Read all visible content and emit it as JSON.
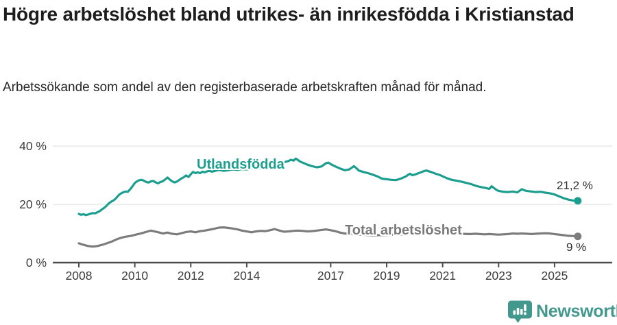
{
  "header": {
    "title": "Högre arbetslöshet bland utrikes- än inrikesfödda i Kristianstad",
    "subtitle": "Arbetssökande som andel av den registerbaserade arbetskraften månad för månad."
  },
  "footer": {
    "brand": "Newsworthy",
    "logo_icon": "speech-bubble-bar-chart-icon"
  },
  "colors": {
    "series_foreign": "#1b9e8e",
    "series_total": "#7c7c7c",
    "brand_teal": "#43988e",
    "grid": "#dcdcdc",
    "axis": "#4d4d4d",
    "title_text": "#1d1d1d"
  },
  "chart_data": {
    "type": "line",
    "title": "Högre arbetslöshet bland utrikes- än inrikesfödda i Kristianstad",
    "subtitle": "Arbetssökande som andel av den registerbaserade arbetskraften månad för månad.",
    "xlabel": "",
    "ylabel": "",
    "x_unit": "year (monthly data)",
    "xlim": [
      2007.1,
      2027.1
    ],
    "ylim": [
      0,
      42
    ],
    "grid": "horizontal",
    "legend_position": "inline-labels",
    "x_ticks": [
      2008,
      2010,
      2012,
      2014,
      2017,
      2019,
      2021,
      2023,
      2025
    ],
    "y_ticks": [
      {
        "value": 0,
        "label": "0 %"
      },
      {
        "value": 20,
        "label": "20 %"
      },
      {
        "value": 40,
        "label": "40 %"
      }
    ],
    "series": [
      {
        "name": "Utlandsfödda",
        "color": "#1b9e8e",
        "end_label": "21,2 %",
        "end_value": 21.2,
        "points": [
          [
            2008.0,
            16.7
          ],
          [
            2008.08,
            16.4
          ],
          [
            2008.17,
            16.6
          ],
          [
            2008.25,
            16.3
          ],
          [
            2008.33,
            16.5
          ],
          [
            2008.42,
            16.8
          ],
          [
            2008.5,
            17.0
          ],
          [
            2008.58,
            16.9
          ],
          [
            2008.67,
            17.3
          ],
          [
            2008.75,
            17.7
          ],
          [
            2008.83,
            18.3
          ],
          [
            2008.92,
            18.9
          ],
          [
            2009.0,
            19.6
          ],
          [
            2009.08,
            20.4
          ],
          [
            2009.17,
            21.0
          ],
          [
            2009.25,
            21.4
          ],
          [
            2009.33,
            22.1
          ],
          [
            2009.42,
            23.1
          ],
          [
            2009.5,
            23.7
          ],
          [
            2009.58,
            24.1
          ],
          [
            2009.67,
            24.4
          ],
          [
            2009.75,
            24.3
          ],
          [
            2009.83,
            25.1
          ],
          [
            2009.92,
            26.2
          ],
          [
            2010.0,
            27.3
          ],
          [
            2010.08,
            27.9
          ],
          [
            2010.17,
            28.3
          ],
          [
            2010.25,
            28.4
          ],
          [
            2010.33,
            28.1
          ],
          [
            2010.42,
            27.6
          ],
          [
            2010.5,
            27.5
          ],
          [
            2010.58,
            27.9
          ],
          [
            2010.67,
            28.0
          ],
          [
            2010.75,
            27.5
          ],
          [
            2010.83,
            27.2
          ],
          [
            2010.92,
            27.7
          ],
          [
            2011.0,
            27.9
          ],
          [
            2011.08,
            28.5
          ],
          [
            2011.17,
            29.2
          ],
          [
            2011.25,
            28.5
          ],
          [
            2011.33,
            27.9
          ],
          [
            2011.42,
            27.5
          ],
          [
            2011.5,
            27.8
          ],
          [
            2011.58,
            28.3
          ],
          [
            2011.67,
            28.9
          ],
          [
            2011.75,
            29.3
          ],
          [
            2011.83,
            29.9
          ],
          [
            2011.92,
            29.4
          ],
          [
            2012.0,
            30.3
          ],
          [
            2012.08,
            31.1
          ],
          [
            2012.17,
            30.7
          ],
          [
            2012.25,
            31.0
          ],
          [
            2012.33,
            30.7
          ],
          [
            2012.42,
            31.2
          ],
          [
            2012.5,
            31.0
          ],
          [
            2012.58,
            31.3
          ],
          [
            2012.67,
            31.5
          ],
          [
            2012.75,
            31.2
          ],
          [
            2012.83,
            31.4
          ],
          [
            2012.92,
            31.6
          ],
          [
            2013.0,
            31.8
          ],
          [
            2013.17,
            31.5
          ],
          [
            2013.33,
            31.7
          ],
          [
            2013.5,
            32.0
          ],
          [
            2013.67,
            31.8
          ],
          [
            2013.83,
            32.1
          ],
          [
            2014.0,
            32.0
          ],
          [
            2014.17,
            32.3
          ],
          [
            2014.33,
            32.1
          ],
          [
            2014.5,
            32.4
          ],
          [
            2014.67,
            32.6
          ],
          [
            2014.83,
            32.9
          ],
          [
            2015.0,
            33.2
          ],
          [
            2015.17,
            33.7
          ],
          [
            2015.33,
            34.4
          ],
          [
            2015.5,
            34.9
          ],
          [
            2015.58,
            35.3
          ],
          [
            2015.67,
            35.0
          ],
          [
            2015.75,
            35.7
          ],
          [
            2015.83,
            35.2
          ],
          [
            2015.92,
            34.6
          ],
          [
            2016.0,
            34.3
          ],
          [
            2016.17,
            33.6
          ],
          [
            2016.33,
            33.1
          ],
          [
            2016.5,
            32.7
          ],
          [
            2016.67,
            33.0
          ],
          [
            2016.83,
            34.1
          ],
          [
            2016.92,
            34.3
          ],
          [
            2017.0,
            33.8
          ],
          [
            2017.17,
            33.0
          ],
          [
            2017.33,
            32.3
          ],
          [
            2017.5,
            31.7
          ],
          [
            2017.67,
            32.0
          ],
          [
            2017.83,
            33.1
          ],
          [
            2017.92,
            32.4
          ],
          [
            2018.0,
            31.6
          ],
          [
            2018.17,
            31.1
          ],
          [
            2018.33,
            30.7
          ],
          [
            2018.5,
            30.2
          ],
          [
            2018.67,
            29.6
          ],
          [
            2018.83,
            28.8
          ],
          [
            2019.0,
            28.6
          ],
          [
            2019.17,
            28.4
          ],
          [
            2019.33,
            28.3
          ],
          [
            2019.5,
            28.8
          ],
          [
            2019.67,
            29.5
          ],
          [
            2019.83,
            30.5
          ],
          [
            2019.92,
            30.0
          ],
          [
            2020.0,
            30.2
          ],
          [
            2020.17,
            30.8
          ],
          [
            2020.33,
            31.4
          ],
          [
            2020.42,
            31.6
          ],
          [
            2020.58,
            31.1
          ],
          [
            2020.75,
            30.5
          ],
          [
            2020.92,
            30.0
          ],
          [
            2021.0,
            29.6
          ],
          [
            2021.17,
            28.9
          ],
          [
            2021.33,
            28.4
          ],
          [
            2021.5,
            28.1
          ],
          [
            2021.67,
            27.8
          ],
          [
            2021.83,
            27.4
          ],
          [
            2022.0,
            27.0
          ],
          [
            2022.17,
            26.4
          ],
          [
            2022.33,
            26.0
          ],
          [
            2022.5,
            25.7
          ],
          [
            2022.67,
            25.3
          ],
          [
            2022.75,
            26.2
          ],
          [
            2022.92,
            25.0
          ],
          [
            2023.0,
            24.6
          ],
          [
            2023.17,
            24.3
          ],
          [
            2023.33,
            24.2
          ],
          [
            2023.5,
            24.4
          ],
          [
            2023.67,
            24.1
          ],
          [
            2023.83,
            25.2
          ],
          [
            2023.92,
            24.8
          ],
          [
            2024.0,
            24.6
          ],
          [
            2024.17,
            24.4
          ],
          [
            2024.33,
            24.2
          ],
          [
            2024.5,
            24.3
          ],
          [
            2024.67,
            24.0
          ],
          [
            2024.83,
            23.8
          ],
          [
            2025.0,
            23.4
          ],
          [
            2025.17,
            22.7
          ],
          [
            2025.33,
            22.1
          ],
          [
            2025.5,
            21.6
          ],
          [
            2025.67,
            21.3
          ],
          [
            2025.83,
            21.2
          ]
        ]
      },
      {
        "name": "Total arbetslöshet",
        "color": "#7c7c7c",
        "end_label": "9 %",
        "end_value": 9.0,
        "points": [
          [
            2008.0,
            6.6
          ],
          [
            2008.17,
            6.1
          ],
          [
            2008.33,
            5.7
          ],
          [
            2008.5,
            5.5
          ],
          [
            2008.67,
            5.7
          ],
          [
            2008.83,
            6.1
          ],
          [
            2009.0,
            6.6
          ],
          [
            2009.17,
            7.2
          ],
          [
            2009.33,
            7.9
          ],
          [
            2009.5,
            8.5
          ],
          [
            2009.67,
            8.9
          ],
          [
            2009.83,
            9.1
          ],
          [
            2010.0,
            9.5
          ],
          [
            2010.17,
            9.9
          ],
          [
            2010.33,
            10.3
          ],
          [
            2010.5,
            10.8
          ],
          [
            2010.58,
            11.0
          ],
          [
            2010.75,
            10.6
          ],
          [
            2010.92,
            10.2
          ],
          [
            2011.0,
            10.0
          ],
          [
            2011.17,
            10.3
          ],
          [
            2011.33,
            9.9
          ],
          [
            2011.5,
            9.7
          ],
          [
            2011.67,
            10.1
          ],
          [
            2011.83,
            10.5
          ],
          [
            2012.0,
            10.7
          ],
          [
            2012.17,
            10.4
          ],
          [
            2012.33,
            10.8
          ],
          [
            2012.5,
            11.0
          ],
          [
            2012.67,
            11.3
          ],
          [
            2012.83,
            11.6
          ],
          [
            2013.0,
            12.0
          ],
          [
            2013.17,
            12.1
          ],
          [
            2013.33,
            11.9
          ],
          [
            2013.5,
            11.7
          ],
          [
            2013.67,
            11.4
          ],
          [
            2013.83,
            11.0
          ],
          [
            2014.0,
            10.7
          ],
          [
            2014.17,
            10.4
          ],
          [
            2014.33,
            10.7
          ],
          [
            2014.5,
            10.9
          ],
          [
            2014.67,
            10.8
          ],
          [
            2014.83,
            11.1
          ],
          [
            2015.0,
            11.5
          ],
          [
            2015.17,
            11.0
          ],
          [
            2015.33,
            10.6
          ],
          [
            2015.5,
            10.7
          ],
          [
            2015.67,
            10.9
          ],
          [
            2015.83,
            11.0
          ],
          [
            2016.0,
            10.9
          ],
          [
            2016.17,
            10.7
          ],
          [
            2016.33,
            10.8
          ],
          [
            2016.5,
            11.0
          ],
          [
            2016.67,
            11.2
          ],
          [
            2016.83,
            11.4
          ],
          [
            2017.0,
            11.1
          ],
          [
            2017.17,
            10.8
          ],
          [
            2017.33,
            10.3
          ],
          [
            2017.5,
            10.0
          ],
          [
            2017.75,
            9.8
          ],
          [
            2018.0,
            9.6
          ],
          [
            2018.5,
            9.4
          ],
          [
            2019.0,
            9.5
          ],
          [
            2019.5,
            9.6
          ],
          [
            2020.0,
            9.9
          ],
          [
            2020.5,
            10.4
          ],
          [
            2021.0,
            10.2
          ],
          [
            2021.5,
            9.9
          ],
          [
            2022.0,
            9.8
          ],
          [
            2022.17,
            9.9
          ],
          [
            2022.33,
            9.8
          ],
          [
            2022.5,
            9.7
          ],
          [
            2022.67,
            9.8
          ],
          [
            2022.83,
            9.7
          ],
          [
            2023.0,
            9.6
          ],
          [
            2023.17,
            9.7
          ],
          [
            2023.33,
            9.8
          ],
          [
            2023.5,
            10.0
          ],
          [
            2023.67,
            9.9
          ],
          [
            2023.83,
            10.0
          ],
          [
            2024.0,
            9.9
          ],
          [
            2024.17,
            9.8
          ],
          [
            2024.33,
            9.9
          ],
          [
            2024.5,
            10.0
          ],
          [
            2024.67,
            10.1
          ],
          [
            2024.83,
            10.0
          ],
          [
            2025.0,
            9.8
          ],
          [
            2025.25,
            9.5
          ],
          [
            2025.5,
            9.2
          ],
          [
            2025.83,
            9.0
          ]
        ]
      }
    ]
  }
}
